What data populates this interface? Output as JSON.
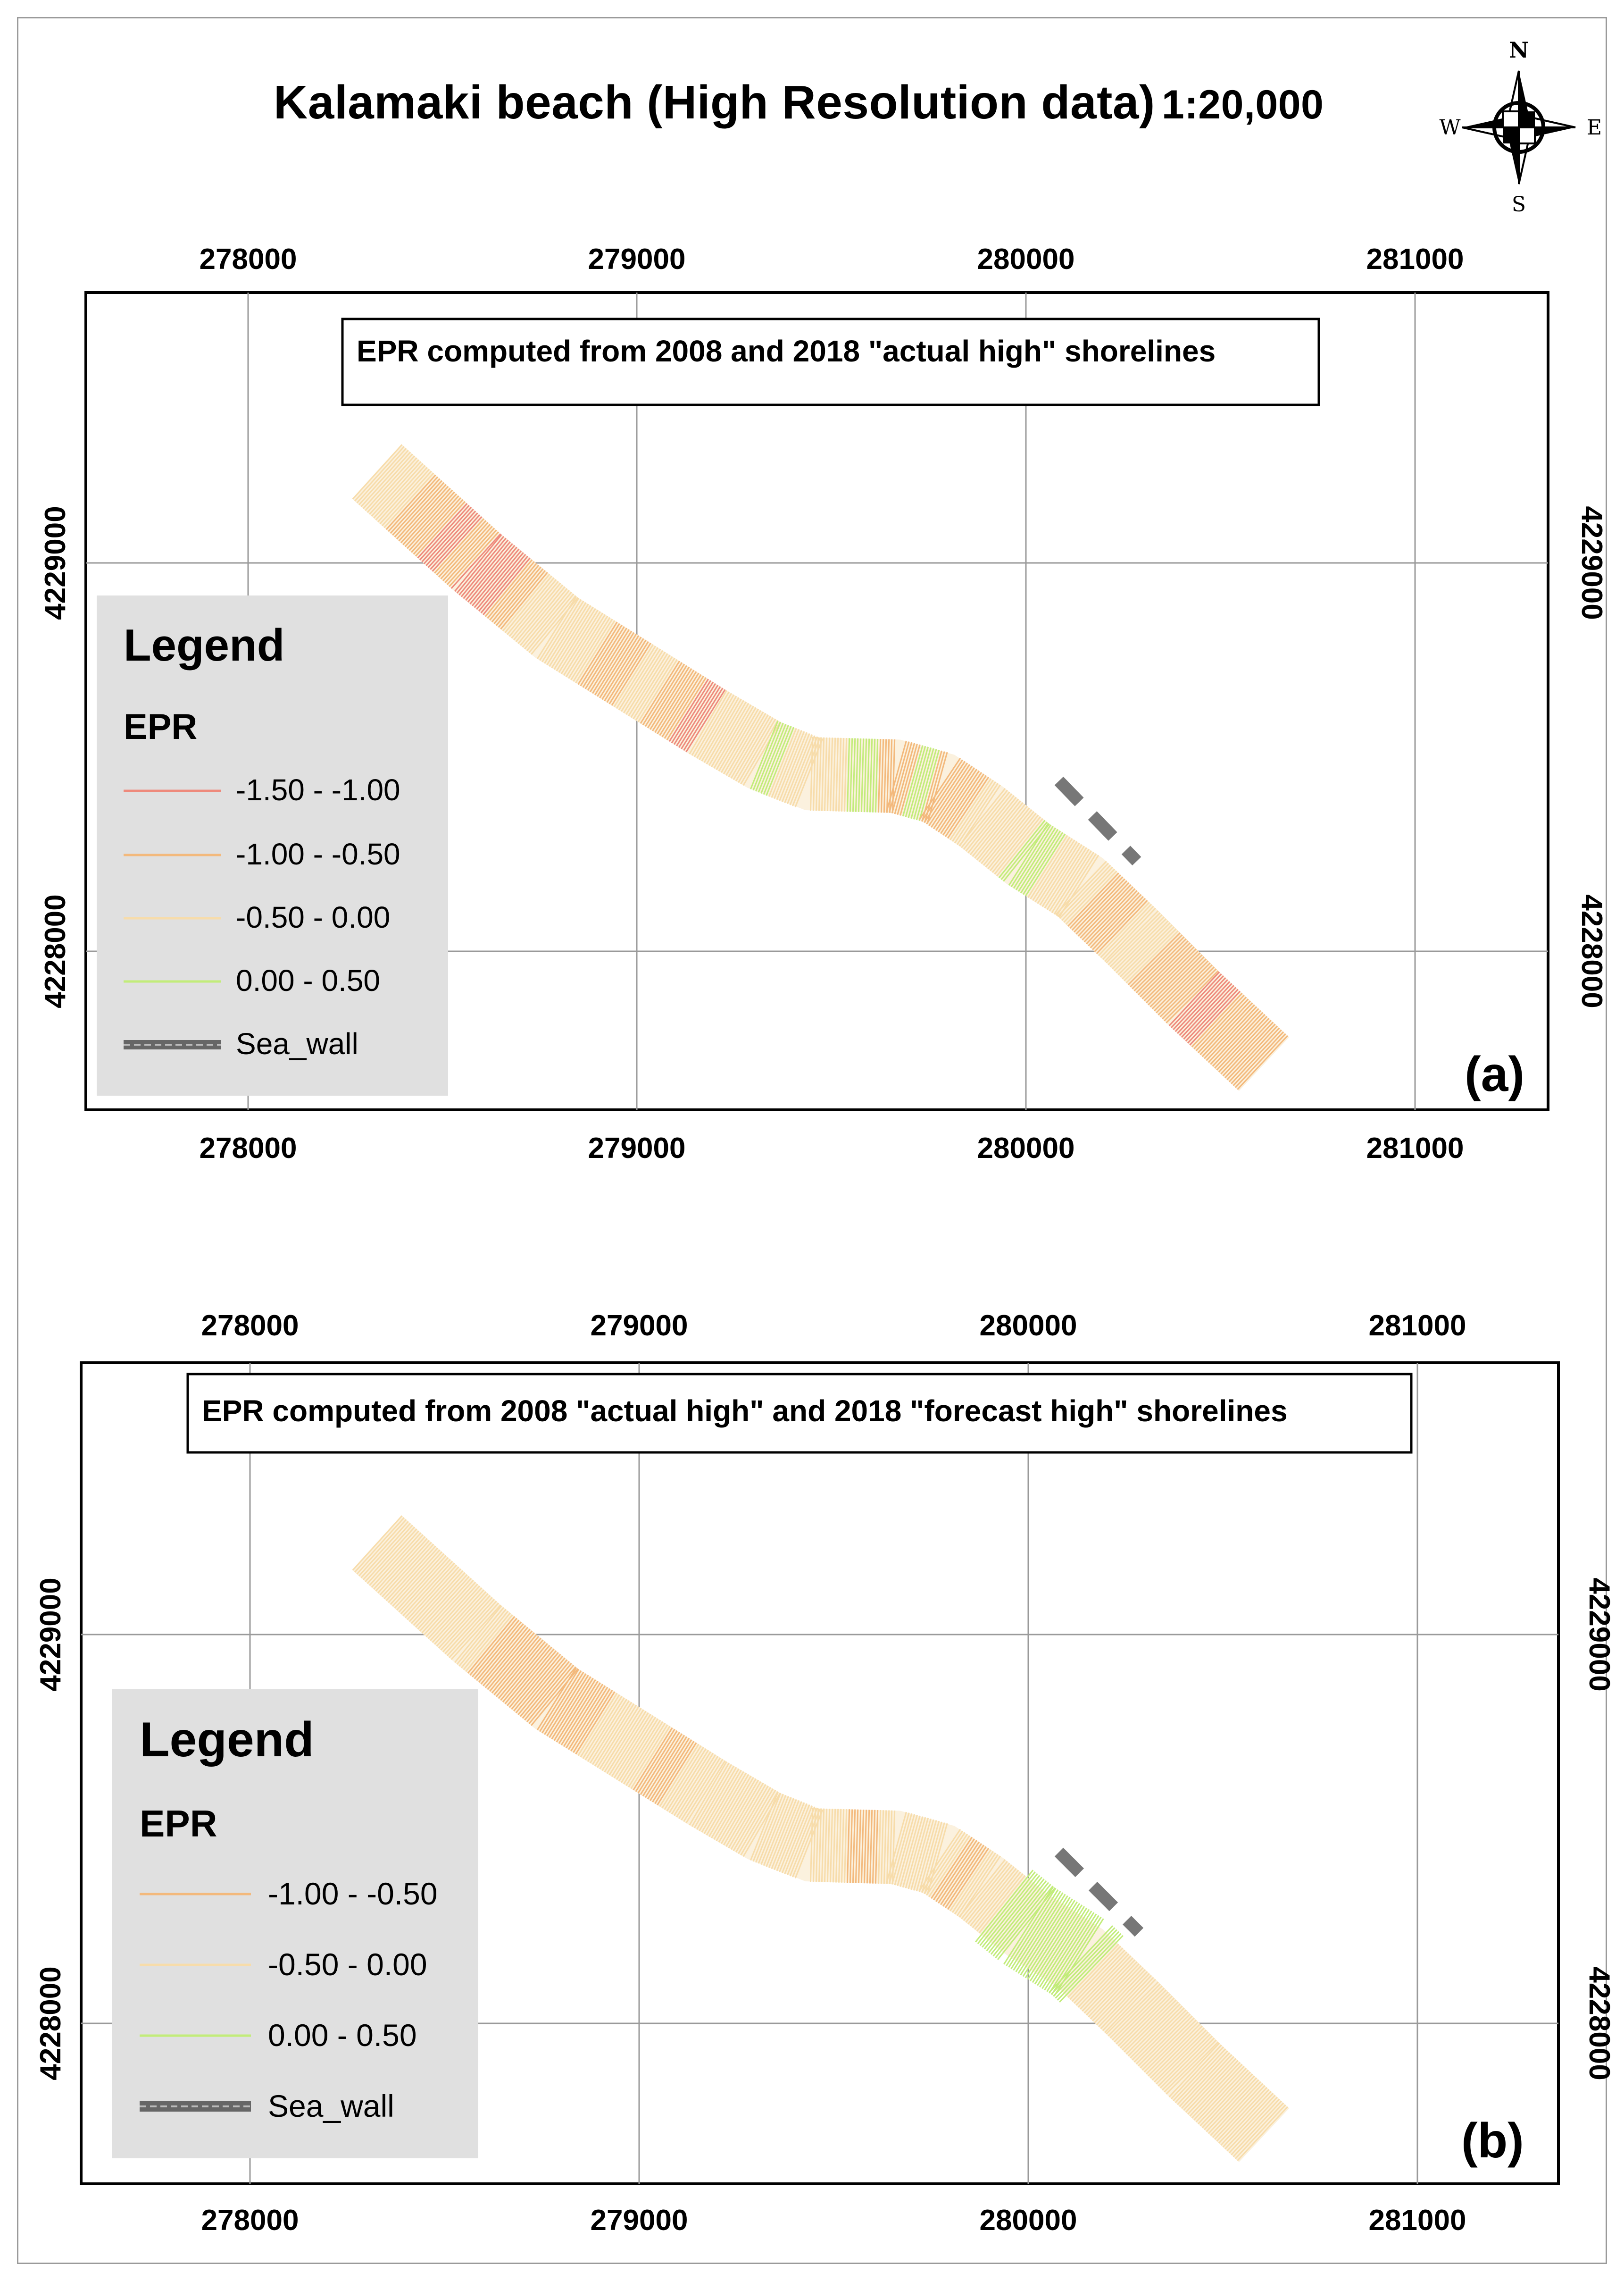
{
  "title": {
    "main": "Kalamaki beach (High Resolution data)",
    "scale": "1:20,000"
  },
  "compass": {
    "n": "N",
    "s": "S",
    "e": "E",
    "w": "W"
  },
  "colors": {
    "class_neg150_neg100": "#ee8a7c",
    "class_neg100_neg050": "#f3b97c",
    "class_neg050_000": "#f7dcaa",
    "class_000_050": "#c2ec7a",
    "sea_wall": "#777777"
  },
  "panels": [
    {
      "tag": "(a)",
      "title": "EPR computed from 2008 and 2018 \"actual high\" shorelines",
      "x_ticks": [
        "278000",
        "279000",
        "280000",
        "281000"
      ],
      "y_ticks": [
        "4229000",
        "4228000"
      ],
      "legend": {
        "title": "Legend",
        "field": "EPR",
        "items": [
          {
            "label": "-1.50 - -1.00",
            "color": "#ee8a7c"
          },
          {
            "label": "-1.00 - -0.50",
            "color": "#f3b97c"
          },
          {
            "label": "-0.50 - 0.00",
            "color": "#f7dcaa"
          },
          {
            "label": "0.00 - 0.50",
            "color": "#c2ec7a"
          },
          {
            "label": "Sea_wall",
            "color": "#777777"
          }
        ]
      }
    },
    {
      "tag": "(b)",
      "title": "EPR computed from 2008 \"actual high\" and 2018 \"forecast high\" shorelines",
      "x_ticks": [
        "278000",
        "279000",
        "280000",
        "281000"
      ],
      "y_ticks": [
        "4229000",
        "4228000"
      ],
      "legend": {
        "title": "Legend",
        "field": "EPR",
        "items": [
          {
            "label": "-1.00 - -0.50",
            "color": "#f3b97c"
          },
          {
            "label": "-0.50 - 0.00",
            "color": "#f7dcaa"
          },
          {
            "label": "0.00 - 0.50",
            "color": "#c2ec7a"
          },
          {
            "label": "Sea_wall",
            "color": "#777777"
          }
        ]
      }
    }
  ]
}
